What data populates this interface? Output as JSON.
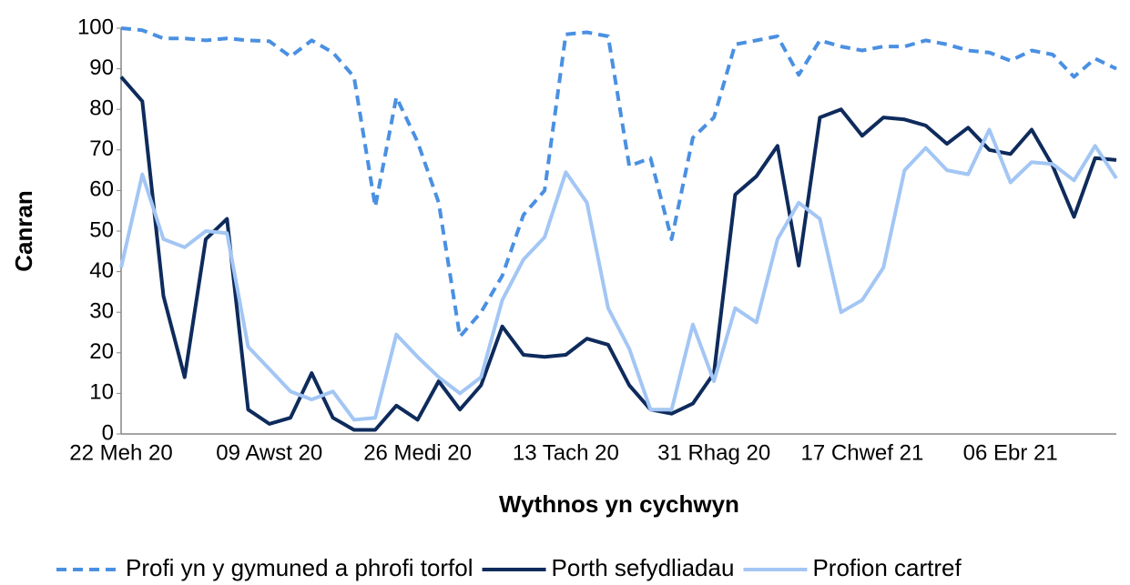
{
  "chart_data": {
    "type": "line",
    "x_label": "Wythnos yn cychwyn",
    "y_label": "Canran",
    "categories": [
      "22 Meh 20",
      null,
      null,
      null,
      null,
      null,
      null,
      "09 Awst 20",
      null,
      null,
      null,
      null,
      null,
      null,
      "26 Medi 20",
      null,
      null,
      null,
      null,
      null,
      null,
      "13 Tach 20",
      null,
      null,
      null,
      null,
      null,
      null,
      "31 Rhag 20",
      null,
      null,
      null,
      null,
      null,
      null,
      "17 Chwef 21",
      null,
      null,
      null,
      null,
      null,
      null,
      "06 Ebr 21",
      null,
      null,
      null,
      null,
      null
    ],
    "series": [
      {
        "name": "Profi yn y gymuned a phrofi torfol",
        "color": "#4a90e2",
        "dash": true,
        "values": [
          100,
          99.5,
          97.5,
          97.5,
          97,
          97.5,
          97,
          96.8,
          93,
          97,
          94,
          88,
          56,
          83,
          72,
          57,
          24,
          30,
          39,
          54,
          60,
          98.5,
          99,
          98,
          66,
          68,
          48,
          73,
          78,
          96,
          97,
          98,
          88.5,
          97,
          95.5,
          94.5,
          95.5,
          95.5,
          97,
          96,
          94.5,
          94,
          92,
          94.5,
          93.5,
          88,
          92.5,
          90
        ]
      },
      {
        "name": "Porth sefydliadau",
        "color": "#0e2b5c",
        "dash": false,
        "values": [
          88,
          82,
          34,
          14,
          48,
          53,
          6,
          2.5,
          4,
          15,
          4,
          1,
          1,
          7,
          3.5,
          13,
          6,
          12,
          26.5,
          19.5,
          19,
          19.5,
          23.5,
          22,
          12,
          6,
          5,
          7.5,
          15,
          59,
          63.5,
          71,
          41.5,
          78,
          80,
          73.5,
          78,
          77.5,
          76,
          71.5,
          75.5,
          70,
          69,
          75,
          66,
          53.5,
          68,
          67.5
        ]
      },
      {
        "name": "Profion cartref",
        "color": "#a3c6f4",
        "dash": false,
        "values": [
          41,
          64,
          48,
          46,
          50,
          49.5,
          21.5,
          16,
          10.5,
          8.5,
          10.5,
          3.5,
          4,
          24.5,
          19,
          14,
          10,
          14,
          33,
          43,
          48.5,
          64.5,
          57,
          31,
          21,
          6,
          6,
          27,
          13,
          31,
          27.5,
          48,
          57,
          53,
          30,
          33,
          41,
          65,
          70.5,
          65,
          64,
          75,
          62,
          67,
          66.5,
          62.5,
          71,
          63
        ]
      }
    ],
    "ylim": [
      0,
      100
    ],
    "yticks": [
      0,
      10,
      20,
      30,
      40,
      50,
      60,
      70,
      80,
      90,
      100
    ],
    "grid": false,
    "legend": "bottom"
  }
}
